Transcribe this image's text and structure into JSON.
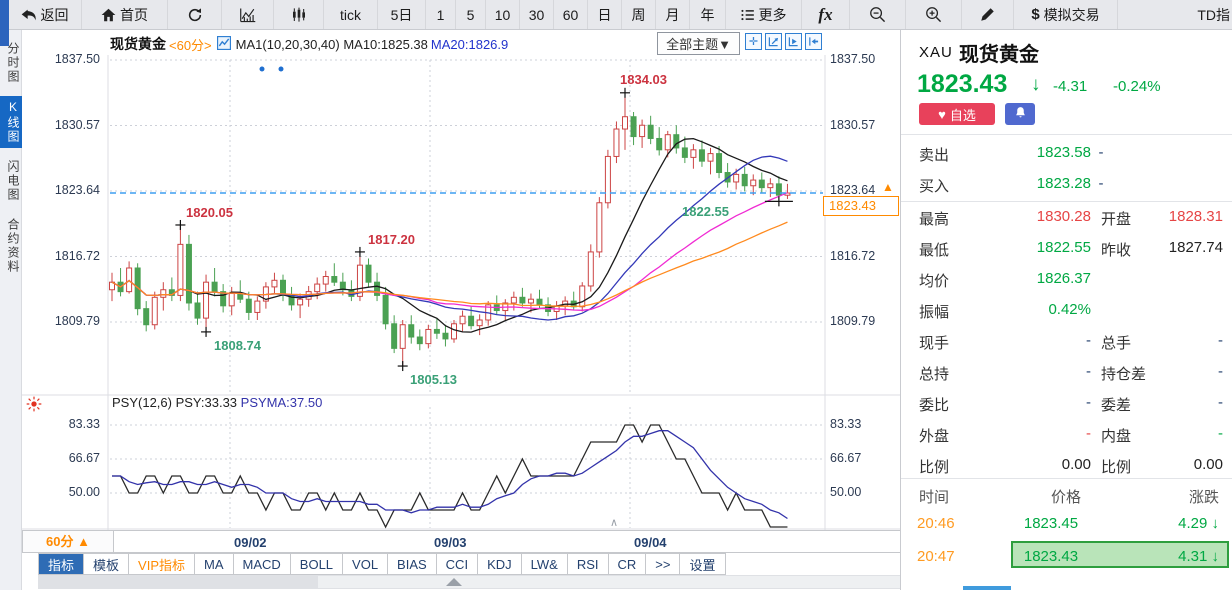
{
  "toolbar": {
    "back": "返回",
    "home": "首页",
    "tick": "tick",
    "periods": [
      "5日",
      "1",
      "5",
      "10",
      "30",
      "60",
      "日",
      "周",
      "月",
      "年"
    ],
    "more": "更多",
    "fx": "fx",
    "sim_trade": "模拟交易",
    "td": "TD指"
  },
  "sidebar": {
    "items": [
      {
        "label": "分时图",
        "active": false
      },
      {
        "label": "K线图",
        "active": true
      },
      {
        "label": "闪电图",
        "active": false
      },
      {
        "label": "合约资料",
        "active": false
      }
    ]
  },
  "chart_header": {
    "symbol_name": "现货黄金",
    "period": "<60分>",
    "ma_text": "MA1(10,20,30,40) MA10:1825.38",
    "ma20_text": "MA20:1826.9",
    "themes_button": "全部主题▼"
  },
  "psy_header": {
    "text": "PSY(12,6) PSY:33.33",
    "ma_text": "PSYMA:37.50"
  },
  "xaxis": {
    "period_label": "60分"
  },
  "colors": {
    "up": "#cc4444",
    "down": "#4ba153",
    "price_down_green": "#00a843",
    "price_up_red": "#e64545",
    "accent_orange": "#ff8a00",
    "dashed_line_blue": "#3d9df0",
    "ma_colors": [
      "#1a1a1a",
      "#3338b8",
      "#f02bd3",
      "#ff8a1e"
    ],
    "psy": "#2a2a2a",
    "psyma": "#3333aa",
    "highlight_green_bg": "#b9e4b9",
    "tab_active_bg": "#2e6cb5",
    "sidebar_active_bg": "#1668c4",
    "fav_red": "#e8415b",
    "bell_blue": "#5069cf"
  },
  "chart_data": {
    "type": "candlestick",
    "title": "现货黄金 60分 K线图",
    "y_axis_labels": [
      "1837.50",
      "1830.57",
      "1823.64",
      "1816.72",
      "1809.79"
    ],
    "y_ticks": [
      1837.5,
      1830.57,
      1823.64,
      1816.72,
      1809.79
    ],
    "psy_y_labels": [
      "83.33",
      "66.67",
      "50.00"
    ],
    "psy_y_ticks": [
      83.33,
      66.67,
      50.0
    ],
    "x_labels": [
      {
        "text": "09/02",
        "grid_x": 208
      },
      {
        "text": "09/03",
        "grid_x": 408
      },
      {
        "text": "09/04",
        "grid_x": 608
      }
    ],
    "last_price": 1823.43,
    "last_price_label": "1823.43",
    "ma_periods": [
      10,
      20,
      30,
      40
    ],
    "candles": [
      [
        1813.2,
        1815.0,
        1812.0,
        1814.0
      ],
      [
        1814.0,
        1815.5,
        1812.5,
        1813.0
      ],
      [
        1813.0,
        1816.2,
        1812.8,
        1815.5
      ],
      [
        1815.5,
        1816.0,
        1810.5,
        1811.2
      ],
      [
        1811.2,
        1812.0,
        1808.8,
        1809.5
      ],
      [
        1809.5,
        1813.0,
        1809.0,
        1812.4
      ],
      [
        1812.4,
        1814.0,
        1811.0,
        1813.2
      ],
      [
        1813.2,
        1814.5,
        1812.0,
        1812.6
      ],
      [
        1812.6,
        1820.05,
        1812.0,
        1818.0
      ],
      [
        1818.0,
        1819.0,
        1811.0,
        1811.8
      ],
      [
        1811.8,
        1813.0,
        1809.5,
        1810.2
      ],
      [
        1810.2,
        1814.8,
        1808.74,
        1814.0
      ],
      [
        1814.0,
        1815.5,
        1812.5,
        1813.0
      ],
      [
        1813.0,
        1813.8,
        1810.8,
        1811.5
      ],
      [
        1811.5,
        1813.5,
        1810.5,
        1812.8
      ],
      [
        1812.8,
        1814.2,
        1811.8,
        1812.2
      ],
      [
        1812.2,
        1813.0,
        1810.0,
        1810.8
      ],
      [
        1810.8,
        1812.5,
        1810.0,
        1812.0
      ],
      [
        1812.0,
        1814.0,
        1811.2,
        1813.5
      ],
      [
        1813.5,
        1815.0,
        1812.8,
        1814.2
      ],
      [
        1814.2,
        1814.8,
        1812.0,
        1812.6
      ],
      [
        1812.6,
        1813.5,
        1811.0,
        1811.6
      ],
      [
        1811.6,
        1812.8,
        1810.2,
        1812.2
      ],
      [
        1812.2,
        1813.6,
        1811.4,
        1813.0
      ],
      [
        1813.0,
        1814.5,
        1812.2,
        1813.8
      ],
      [
        1813.8,
        1815.2,
        1813.0,
        1814.6
      ],
      [
        1814.6,
        1816.0,
        1813.6,
        1814.0
      ],
      [
        1814.0,
        1815.0,
        1812.6,
        1813.2
      ],
      [
        1813.2,
        1814.2,
        1812.0,
        1812.5
      ],
      [
        1812.5,
        1817.2,
        1812.0,
        1815.8
      ],
      [
        1815.8,
        1816.5,
        1813.5,
        1814.0
      ],
      [
        1814.0,
        1815.0,
        1812.0,
        1812.6
      ],
      [
        1812.6,
        1813.5,
        1809.0,
        1809.6
      ],
      [
        1809.6,
        1810.5,
        1806.5,
        1807.0
      ],
      [
        1807.0,
        1810.0,
        1805.13,
        1809.5
      ],
      [
        1809.5,
        1810.5,
        1807.5,
        1808.2
      ],
      [
        1808.2,
        1809.0,
        1806.8,
        1807.5
      ],
      [
        1807.5,
        1809.5,
        1807.0,
        1809.0
      ],
      [
        1809.0,
        1810.2,
        1808.0,
        1808.6
      ],
      [
        1808.6,
        1809.5,
        1807.2,
        1808.0
      ],
      [
        1808.0,
        1810.0,
        1807.6,
        1809.6
      ],
      [
        1809.6,
        1811.0,
        1808.8,
        1810.4
      ],
      [
        1810.4,
        1811.5,
        1809.0,
        1809.4
      ],
      [
        1809.4,
        1810.6,
        1808.4,
        1810.0
      ],
      [
        1810.0,
        1812.0,
        1809.4,
        1811.6
      ],
      [
        1811.6,
        1812.6,
        1810.6,
        1811.0
      ],
      [
        1811.0,
        1812.2,
        1810.0,
        1811.8
      ],
      [
        1811.8,
        1813.0,
        1811.0,
        1812.4
      ],
      [
        1812.4,
        1813.4,
        1811.4,
        1811.8
      ],
      [
        1811.8,
        1812.8,
        1810.8,
        1812.2
      ],
      [
        1812.2,
        1813.2,
        1811.2,
        1811.6
      ],
      [
        1811.6,
        1812.4,
        1810.4,
        1810.9
      ],
      [
        1810.9,
        1812.0,
        1810.0,
        1811.5
      ],
      [
        1811.5,
        1812.5,
        1810.5,
        1812.0
      ],
      [
        1812.0,
        1813.0,
        1811.0,
        1811.4
      ],
      [
        1811.4,
        1814.0,
        1810.9,
        1813.6
      ],
      [
        1813.6,
        1818.0,
        1813.0,
        1817.2
      ],
      [
        1817.2,
        1823.0,
        1816.6,
        1822.4
      ],
      [
        1822.4,
        1828.0,
        1821.8,
        1827.3
      ],
      [
        1827.3,
        1831.0,
        1826.6,
        1830.2
      ],
      [
        1830.2,
        1834.03,
        1828.0,
        1831.5
      ],
      [
        1831.5,
        1832.0,
        1828.5,
        1829.4
      ],
      [
        1829.4,
        1831.2,
        1828.2,
        1830.6
      ],
      [
        1830.6,
        1831.6,
        1828.6,
        1829.2
      ],
      [
        1829.2,
        1830.4,
        1827.4,
        1828.0
      ],
      [
        1828.0,
        1830.0,
        1827.2,
        1829.6
      ],
      [
        1829.6,
        1830.6,
        1827.6,
        1828.2
      ],
      [
        1828.2,
        1829.4,
        1826.6,
        1827.2
      ],
      [
        1827.2,
        1828.6,
        1826.0,
        1828.0
      ],
      [
        1828.0,
        1829.0,
        1826.2,
        1826.8
      ],
      [
        1826.8,
        1828.2,
        1825.4,
        1827.6
      ],
      [
        1827.6,
        1828.4,
        1825.0,
        1825.6
      ],
      [
        1825.6,
        1826.6,
        1824.0,
        1824.6
      ],
      [
        1824.6,
        1826.0,
        1823.8,
        1825.4
      ],
      [
        1825.4,
        1826.2,
        1823.6,
        1824.2
      ],
      [
        1824.2,
        1825.4,
        1823.2,
        1824.8
      ],
      [
        1824.8,
        1825.6,
        1823.4,
        1824.0
      ],
      [
        1824.0,
        1825.0,
        1823.0,
        1824.4
      ],
      [
        1824.4,
        1825.2,
        1822.55,
        1823.2
      ],
      [
        1823.2,
        1824.4,
        1822.8,
        1823.43
      ]
    ],
    "psy": [
      58.33,
      58.33,
      50,
      50,
      58.33,
      58.33,
      50,
      58.33,
      58.33,
      50,
      50,
      58.33,
      58.33,
      50,
      50,
      58.33,
      50,
      50,
      41.67,
      50,
      50,
      41.67,
      41.67,
      50,
      50,
      41.67,
      50,
      41.67,
      41.67,
      50,
      41.67,
      41.67,
      33.33,
      41.67,
      41.67,
      41.67,
      50,
      41.67,
      41.67,
      41.67,
      41.67,
      50,
      41.67,
      41.67,
      50,
      58.33,
      50,
      58.33,
      66.67,
      58.33,
      58.33,
      58.33,
      58.33,
      58.33,
      58.33,
      66.67,
      75,
      75,
      75,
      75,
      83.33,
      83.33,
      75,
      83.33,
      83.33,
      75,
      66.67,
      66.67,
      58.33,
      50,
      50,
      50,
      41.67,
      50,
      41.67,
      41.67,
      41.67,
      33.33,
      33.33,
      33.33
    ],
    "annotations": [
      {
        "text": "1834.03",
        "index": 60,
        "price": 1834.03,
        "side": "high"
      },
      {
        "text": "1820.05",
        "index": 8,
        "price": 1820.05,
        "side": "high"
      },
      {
        "text": "1817.20",
        "index": 29,
        "price": 1817.2,
        "side": "high"
      },
      {
        "text": "1808.74",
        "index": 11,
        "price": 1808.74,
        "side": "low"
      },
      {
        "text": "1805.13",
        "index": 34,
        "price": 1805.13,
        "side": "low"
      },
      {
        "text": "1822.55",
        "index": 78,
        "price": 1822.55,
        "side": "low",
        "wide": true
      }
    ],
    "dots": [
      {
        "x": 240,
        "y": 14
      },
      {
        "x": 259,
        "y": 14
      }
    ]
  },
  "bottom_tabs": [
    {
      "label": "指标"
    },
    {
      "label": "模板"
    },
    {
      "label": "VIP指标"
    },
    {
      "label": "MA"
    },
    {
      "label": "MACD"
    },
    {
      "label": "BOLL"
    },
    {
      "label": "VOL"
    },
    {
      "label": "BIAS"
    },
    {
      "label": "CCI"
    },
    {
      "label": "KDJ"
    },
    {
      "label": "LW&"
    },
    {
      "label": "RSI"
    },
    {
      "label": "CR"
    },
    {
      "label": ">>"
    },
    {
      "label": "设置"
    }
  ],
  "quote_panel": {
    "code": "XAU",
    "name": "现货黄金",
    "price": "1823.43",
    "change": "-4.31",
    "change_pct": "-0.24%",
    "fav_button": "自选",
    "rows": [
      {
        "l1": "卖出",
        "v1": "1823.58",
        "l2": "",
        "v2": "-"
      },
      {
        "l1": "买入",
        "v1": "1823.28",
        "l2": "",
        "v2": "-"
      },
      {
        "l1": "最高",
        "v1": "1830.28",
        "l2": "开盘",
        "v2": "1828.31"
      },
      {
        "l1": "最低",
        "v1": "1822.55",
        "l2": "昨收",
        "v2": "1827.74"
      },
      {
        "l1": "均价",
        "v1": "1826.37",
        "l2": "",
        "v2": ""
      },
      {
        "l1": "振幅",
        "v1": "0.42%",
        "l2": "",
        "v2": ""
      },
      {
        "l1": "现手",
        "v1": "-",
        "l2": "总手",
        "v2": "-"
      },
      {
        "l1": "总持",
        "v1": "-",
        "l2": "持仓差",
        "v2": "-"
      },
      {
        "l1": "委比",
        "v1": "-",
        "l2": "委差",
        "v2": "-"
      },
      {
        "l1": "外盘",
        "v1": "-",
        "l2": "内盘",
        "v2": "-"
      },
      {
        "l1": "比例",
        "v1": "0.00",
        "l2": "比例",
        "v2": "0.00"
      }
    ],
    "ticks_header": [
      "时间",
      "价格",
      "涨跌"
    ],
    "ticks": [
      {
        "time": "20:46",
        "price": "1823.45",
        "change": "4.29",
        "highlight": false
      },
      {
        "time": "20:47",
        "price": "1823.43",
        "change": "4.31",
        "highlight": true
      }
    ]
  }
}
